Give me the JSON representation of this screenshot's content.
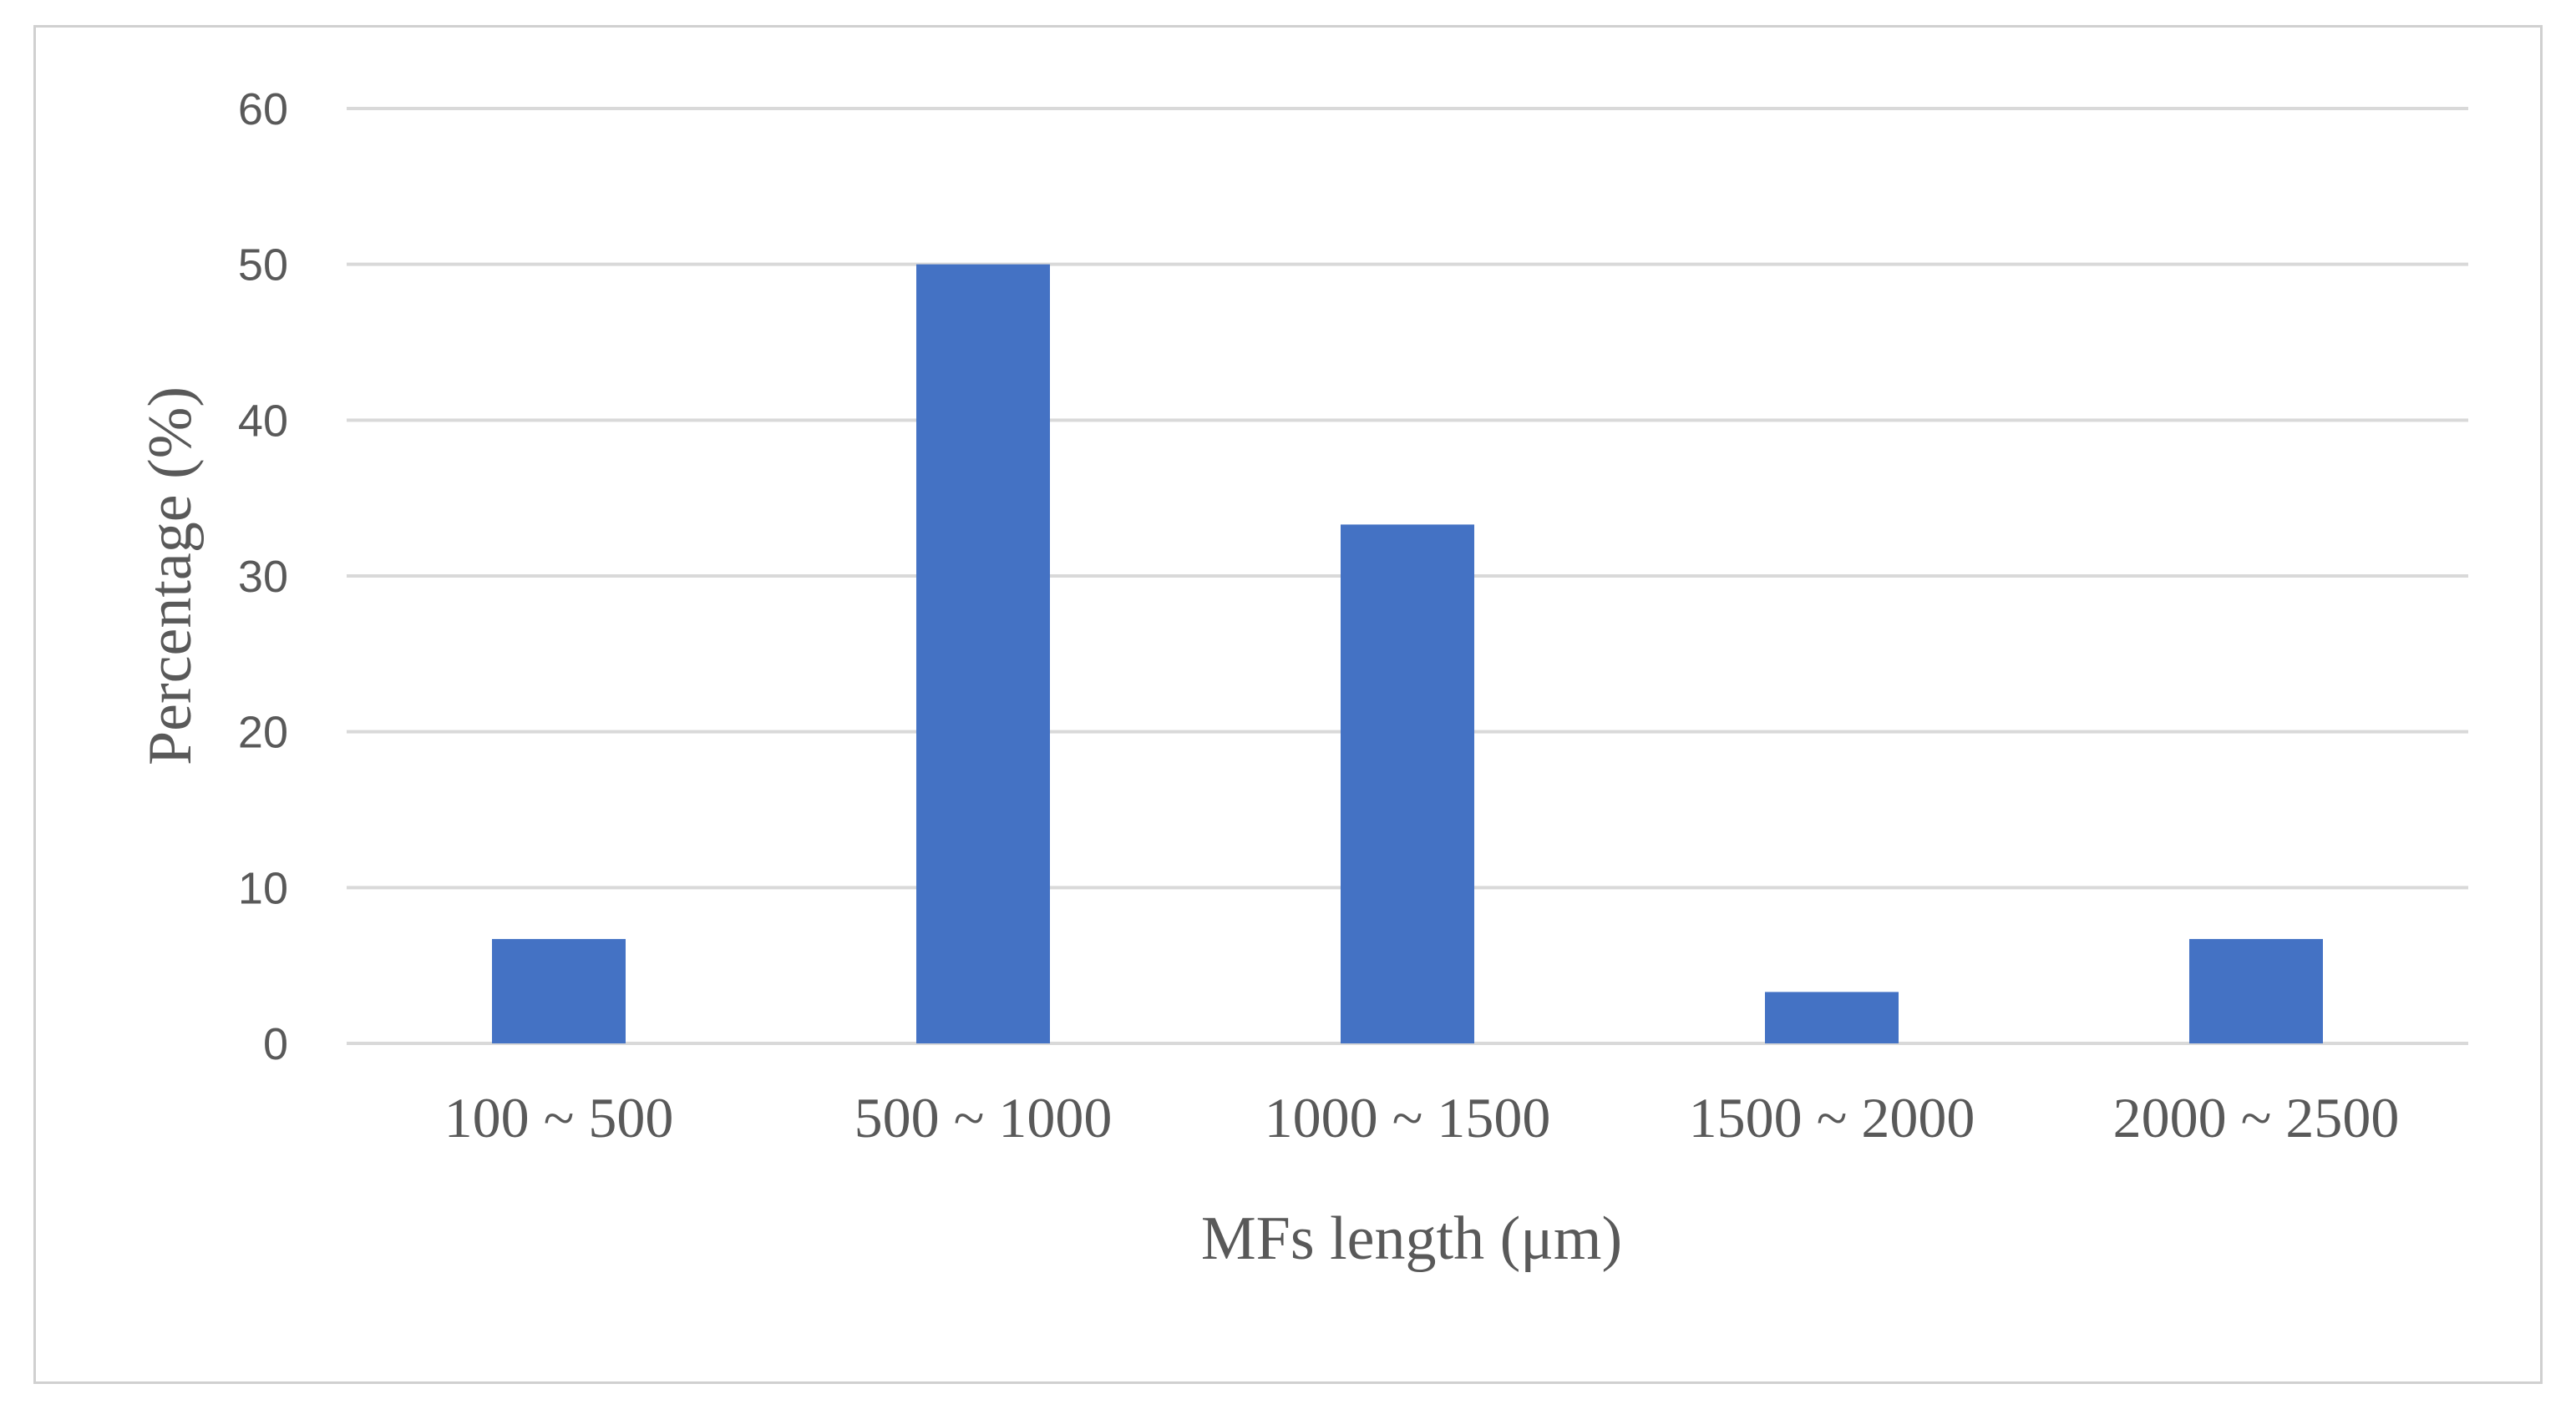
{
  "chart_data": {
    "type": "bar",
    "categories": [
      "100 ~ 500",
      "500 ~ 1000",
      "1000 ~ 1500",
      "1500 ~ 2000",
      "2000 ~ 2500"
    ],
    "values": [
      6.7,
      50.0,
      33.3,
      3.3,
      6.7
    ],
    "xlabel": "MFs length (μm)",
    "ylabel": "Percentage (%)",
    "ylim": [
      0,
      60
    ],
    "yticks": [
      0,
      10,
      20,
      30,
      40,
      50,
      60
    ],
    "grid": true,
    "legend": "none",
    "bar_color": "#4472C4",
    "grid_color": "#D9D9D9",
    "text_color": "#595959"
  }
}
